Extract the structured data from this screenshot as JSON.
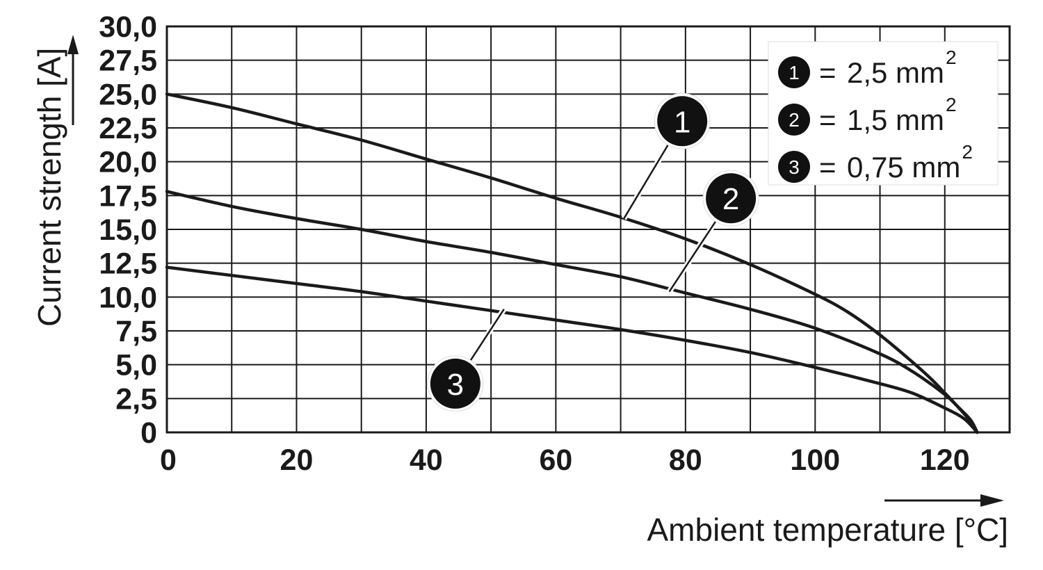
{
  "chart_data": {
    "type": "line",
    "xlabel": "Ambient temperature [°C]",
    "ylabel": "Current strength [A]",
    "xlim": [
      0,
      130
    ],
    "ylim": [
      0,
      30
    ],
    "x_ticks": [
      "0",
      "20",
      "40",
      "60",
      "80",
      "100",
      "120"
    ],
    "y_ticks": [
      "0",
      "2,5",
      "5,0",
      "7,5",
      "10,0",
      "12,5",
      "15,0",
      "17,5",
      "20,0",
      "22,5",
      "25,0",
      "27,5",
      "30,0"
    ],
    "grid": true,
    "legend_position": "top-right",
    "legend": [
      {
        "marker": "1",
        "equals": "=",
        "value": "2,5 mm",
        "sup": "2"
      },
      {
        "marker": "2",
        "equals": "=",
        "value": "1,5 mm",
        "sup": "2"
      },
      {
        "marker": "3",
        "equals": "=",
        "value": "0,75 mm",
        "sup": "2"
      }
    ],
    "series": [
      {
        "marker": "1",
        "color": "#1a1a1a",
        "points": [
          [
            0,
            25.0
          ],
          [
            10,
            24.0
          ],
          [
            20,
            22.8
          ],
          [
            30,
            21.6
          ],
          [
            40,
            20.2
          ],
          [
            50,
            18.8
          ],
          [
            60,
            17.3
          ],
          [
            70,
            15.9
          ],
          [
            80,
            14.3
          ],
          [
            90,
            12.4
          ],
          [
            100,
            10.2
          ],
          [
            105,
            8.9
          ],
          [
            110,
            7.2
          ],
          [
            115,
            5.2
          ],
          [
            118,
            3.9
          ],
          [
            120,
            2.9
          ],
          [
            122,
            1.9
          ],
          [
            124,
            0.8
          ],
          [
            125,
            0
          ]
        ]
      },
      {
        "marker": "2",
        "color": "#1a1a1a",
        "points": [
          [
            0,
            17.8
          ],
          [
            10,
            16.7
          ],
          [
            20,
            15.8
          ],
          [
            30,
            15.0
          ],
          [
            40,
            14.1
          ],
          [
            50,
            13.3
          ],
          [
            60,
            12.4
          ],
          [
            70,
            11.5
          ],
          [
            80,
            10.3
          ],
          [
            90,
            9.1
          ],
          [
            100,
            7.7
          ],
          [
            110,
            5.8
          ],
          [
            115,
            4.5
          ],
          [
            120,
            2.8
          ],
          [
            122,
            1.9
          ],
          [
            124,
            0.9
          ],
          [
            125,
            0
          ]
        ]
      },
      {
        "marker": "3",
        "color": "#1a1a1a",
        "points": [
          [
            0,
            12.2
          ],
          [
            10,
            11.6
          ],
          [
            20,
            11.0
          ],
          [
            30,
            10.4
          ],
          [
            40,
            9.7
          ],
          [
            50,
            9.0
          ],
          [
            60,
            8.3
          ],
          [
            70,
            7.6
          ],
          [
            80,
            6.8
          ],
          [
            90,
            5.9
          ],
          [
            100,
            4.8
          ],
          [
            110,
            3.6
          ],
          [
            115,
            2.9
          ],
          [
            120,
            1.8
          ],
          [
            123,
            1.0
          ],
          [
            125,
            0
          ]
        ]
      }
    ],
    "markers": [
      {
        "label": "1",
        "x": 79.5,
        "y": 23.0,
        "leader_to": [
          70.5,
          15.8
        ]
      },
      {
        "label": "2",
        "x": 87,
        "y": 17.3,
        "leader_to": [
          77.5,
          10.4
        ]
      },
      {
        "label": "3",
        "x": 44.5,
        "y": 3.6,
        "leader_to": [
          52,
          9.1
        ]
      }
    ]
  }
}
